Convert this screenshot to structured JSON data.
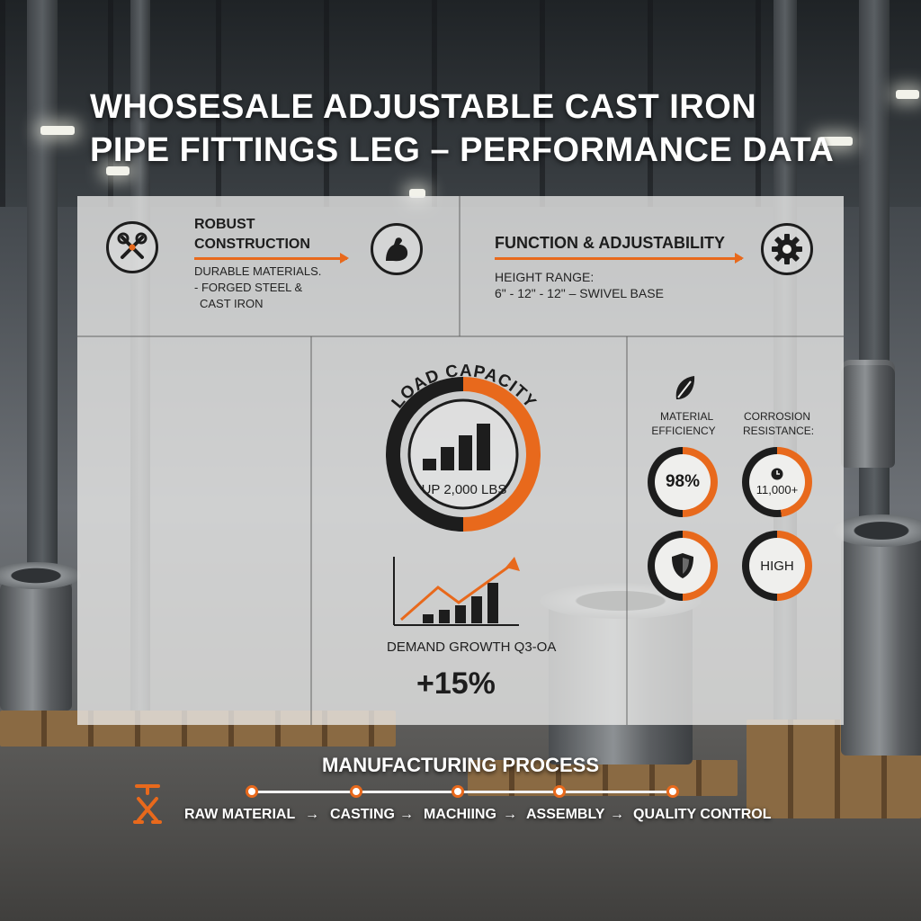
{
  "header": {
    "title_line1": "WHOSESALE ADJUSTABLE CAST IRON",
    "title_line2": "PIPE FITTINGS LEG – PERFORMANCE DATA"
  },
  "construction": {
    "title_line1": "ROBUST",
    "title_line2": "CONSTRUCTION",
    "detail_line1": "DURABLE MATERIALS.",
    "detail_line2": "- FORGED STEEL &",
    "detail_line3": "CAST IRON",
    "icon_left": "tools-icon",
    "icon_right": "flexed-arm-icon"
  },
  "function": {
    "title": "FUNCTION & ADJUSTABILITY",
    "detail_line1": "HEIGHT RANGE:",
    "detail_line2": "6\" - 12\" - 12\" – SWIVEL BASE",
    "icon": "gear-icon"
  },
  "load": {
    "title": "LOAD CAPACITY",
    "value": "UP 2,000 LBS",
    "ring_fill_fraction": 0.5,
    "bar_values": [
      1,
      2,
      3,
      4
    ],
    "icon": "bar-chart-icon"
  },
  "demand": {
    "label": "DEMAND GROWTH Q3-OA",
    "value": "+15%",
    "bar_values": [
      1,
      1.5,
      2,
      3,
      4.5
    ],
    "icon": "trend-up-chart-icon"
  },
  "material": {
    "label_line1": "MATERIAL",
    "label_line2": "EFFICIENCY",
    "value": "98%",
    "fill_fraction": 0.98,
    "icon": "leaf-icon"
  },
  "corrosion": {
    "label_line1": "CORROSION",
    "label_line2": "RESISTANCE:",
    "value": "11,000+",
    "icon": "clock-icon"
  },
  "durability": {
    "icon": "shield-icon"
  },
  "rating": {
    "value": "HIGH"
  },
  "process": {
    "title": "MANUFACTURING PROCESS",
    "icon": "clamp-tool-icon",
    "steps": [
      "RAW MATERIAL",
      "CASTING",
      "MACHIING",
      "ASSEMBLY",
      "QUALITY CONTROL"
    ],
    "arrow": "→"
  },
  "colors": {
    "accent": "#e8691c",
    "dark": "#1d1d1d",
    "panel": "#eeeeec"
  }
}
